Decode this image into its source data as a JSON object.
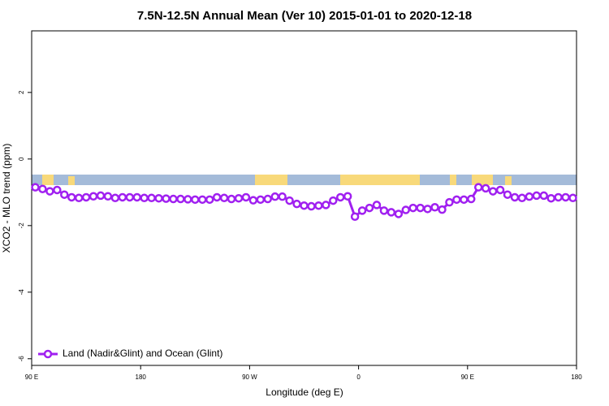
{
  "chart_data": {
    "type": "line",
    "title": "7.5N-12.5N Annual Mean (Ver 10)   2015-01-01 to 2020-12-18",
    "x_label": "Longitude (deg E)",
    "y_label": "XCO2 - MLO trend (ppm)",
    "xlim": [
      90,
      540
    ],
    "xticks": [
      {
        "value": 90,
        "label": "90 E"
      },
      {
        "value": 180,
        "label": "180"
      },
      {
        "value": 270,
        "label": "90 W"
      },
      {
        "value": 360,
        "label": "0"
      },
      {
        "value": 450,
        "label": "90 E"
      },
      {
        "value": 540,
        "label": "180"
      }
    ],
    "ylim": [
      -6.2,
      3.85
    ],
    "yticks": [
      2,
      0,
      -2,
      -4,
      -6
    ],
    "legend_position": "lower left",
    "x": [
      93,
      99,
      105,
      111,
      117,
      123,
      129,
      135,
      141,
      147,
      153,
      159,
      165,
      171,
      177,
      183,
      189,
      195,
      201,
      207,
      213,
      219,
      225,
      231,
      237,
      243,
      249,
      255,
      261,
      267,
      273,
      279,
      285,
      291,
      297,
      303,
      309,
      315,
      321,
      327,
      333,
      339,
      345,
      351,
      357,
      363,
      369,
      375,
      381,
      387,
      393,
      399,
      405,
      411,
      417,
      423,
      429,
      435,
      441,
      447,
      453,
      459,
      465,
      471,
      477,
      483,
      489,
      495,
      501,
      507,
      513,
      519,
      525,
      531,
      537
    ],
    "series": [
      {
        "name": "Land (Nadir&Glint) and Ocean (Glint)",
        "color": "#a020f0",
        "values": [
          -0.85,
          -0.9,
          -0.97,
          -0.93,
          -1.07,
          -1.15,
          -1.17,
          -1.15,
          -1.12,
          -1.1,
          -1.12,
          -1.17,
          -1.15,
          -1.15,
          -1.15,
          -1.17,
          -1.17,
          -1.18,
          -1.19,
          -1.2,
          -1.2,
          -1.21,
          -1.22,
          -1.22,
          -1.22,
          -1.15,
          -1.17,
          -1.2,
          -1.18,
          -1.15,
          -1.24,
          -1.22,
          -1.2,
          -1.13,
          -1.13,
          -1.25,
          -1.35,
          -1.4,
          -1.42,
          -1.4,
          -1.38,
          -1.25,
          -1.15,
          -1.12,
          -1.73,
          -1.55,
          -1.47,
          -1.38,
          -1.55,
          -1.6,
          -1.65,
          -1.53,
          -1.47,
          -1.47,
          -1.5,
          -1.45,
          -1.52,
          -1.3,
          -1.22,
          -1.22,
          -1.2,
          -0.85,
          -0.88,
          -0.97,
          -0.93,
          -1.07,
          -1.15,
          -1.17,
          -1.13,
          -1.1,
          -1.1,
          -1.18,
          -1.15,
          -1.15,
          -1.17
        ]
      }
    ]
  }
}
